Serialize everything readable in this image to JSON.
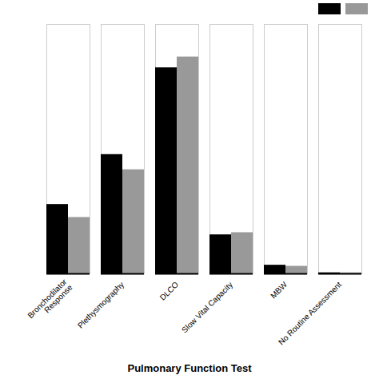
{
  "chart_data": {
    "type": "bar",
    "xlabel": "Pulmonary Function Test",
    "categories": [
      "Bronchodilator\nResponse",
      "Plethysmography",
      "DLCO",
      "Slow Vital Capacity",
      "MBW",
      "No Routine Assessment"
    ],
    "series": [
      {
        "color": "#000000",
        "values": [
          32,
          55,
          95,
          18,
          4,
          0.5
        ]
      },
      {
        "color": "#999999",
        "values": [
          26,
          48,
          100,
          19,
          3.5,
          0.5
        ]
      }
    ],
    "ylim": [
      0,
      115
    ],
    "tick_labels": "x",
    "grid": false,
    "legend": "upper right"
  }
}
